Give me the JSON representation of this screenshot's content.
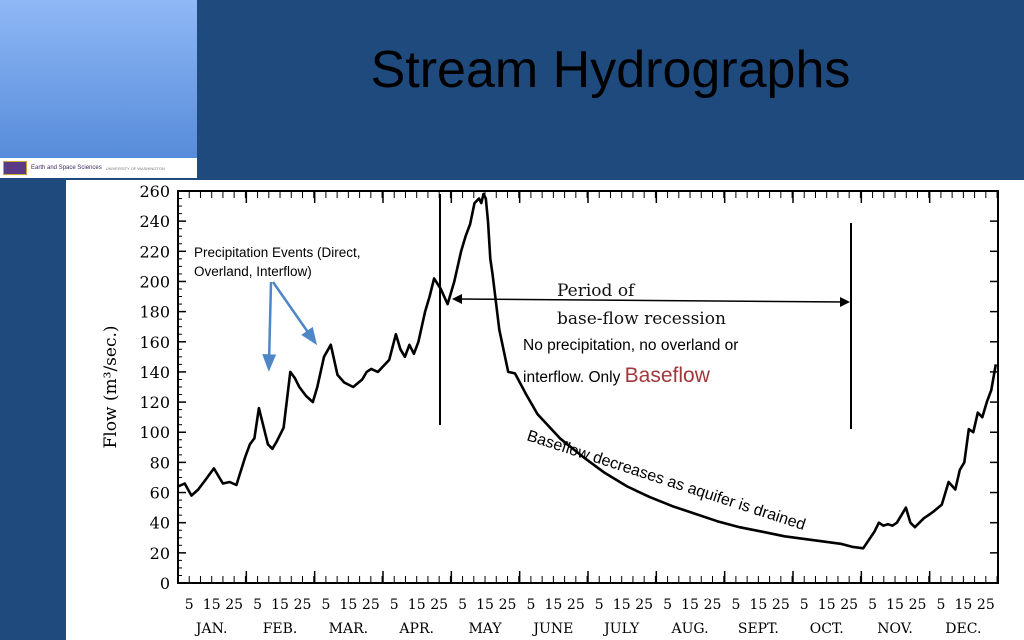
{
  "slide": {
    "title": "Stream Hydrographs",
    "logo_text": "Earth and Space Sciences",
    "logo_subtext": "UNIVERSITY OF WASHINGTON"
  },
  "annotations": {
    "precip_events": "Precipitation Events (Direct, Overland, Interflow)",
    "period_label_1": "Period of",
    "period_label_2": "base-flow  recession",
    "no_precip_1": "No precipitation, no overland or",
    "no_precip_2": "interflow.  Only",
    "baseflow_word": "Baseflow",
    "decreases": "Baseflow decreases as aquifer is drained"
  },
  "colors": {
    "slide_bg": "#1f4a7d",
    "arrow": "#4f86c6",
    "baseflow_word": "#a0383a"
  },
  "chart_data": {
    "type": "line",
    "ylabel": "Flow (m³/sec.)",
    "xlabel": "",
    "ylim": [
      0,
      260
    ],
    "xlim": [
      0,
      365
    ],
    "yticks": [
      "0",
      "20",
      "40",
      "60",
      "80",
      "100",
      "120",
      "140",
      "160",
      "180",
      "200",
      "220",
      "240",
      "260"
    ],
    "month_labels": [
      "JAN.",
      "FEB.",
      "MAR.",
      "APR.",
      "MAY",
      "JUNE",
      "JULY",
      "AUG.",
      "SEPT.",
      "OCT.",
      "NOV.",
      "DEC."
    ],
    "day_labels": [
      "5",
      "15",
      "25"
    ],
    "series": [
      {
        "x": [
          0,
          3,
          6,
          9,
          12,
          16,
          20,
          23,
          26,
          30,
          32,
          34,
          36,
          40,
          42,
          44,
          47,
          50,
          52,
          54,
          57,
          60,
          62,
          65,
          68,
          71,
          74,
          78,
          82,
          84,
          86,
          89,
          94,
          97,
          99,
          101,
          103,
          105,
          107,
          110,
          112,
          114,
          117,
          120,
          123,
          126,
          128,
          130,
          132,
          134,
          135,
          136,
          137,
          138,
          139,
          140,
          143,
          147,
          150,
          155,
          160,
          170,
          180,
          190,
          200,
          210,
          220,
          230,
          240,
          250,
          260,
          270,
          280,
          290,
          295,
          300,
          305,
          310,
          312,
          314,
          316,
          318,
          320,
          322,
          324,
          326,
          328,
          330,
          332,
          334,
          336,
          340,
          343,
          346,
          348,
          350,
          352,
          354,
          356,
          358,
          360,
          362,
          364
        ],
        "y": [
          64,
          66,
          58,
          62,
          68,
          76,
          66,
          67,
          65,
          84,
          92,
          96,
          116,
          92,
          89,
          94,
          103,
          140,
          136,
          130,
          124,
          120,
          130,
          150,
          158,
          138,
          133,
          130,
          135,
          140,
          142,
          140,
          148,
          165,
          155,
          150,
          158,
          152,
          160,
          180,
          190,
          202,
          195,
          185,
          200,
          220,
          230,
          238,
          252,
          255,
          252,
          258,
          255,
          240,
          215,
          205,
          168,
          140,
          139,
          125,
          112,
          96,
          84,
          73,
          64,
          57,
          51,
          46,
          41,
          37,
          34,
          31,
          29,
          27,
          26,
          24,
          23,
          34,
          40,
          38,
          39,
          38,
          40,
          45,
          50,
          40,
          37,
          40,
          43,
          45,
          47,
          52,
          67,
          62,
          75,
          80,
          102,
          100,
          113,
          110,
          120,
          128,
          145
        ]
      }
    ]
  }
}
